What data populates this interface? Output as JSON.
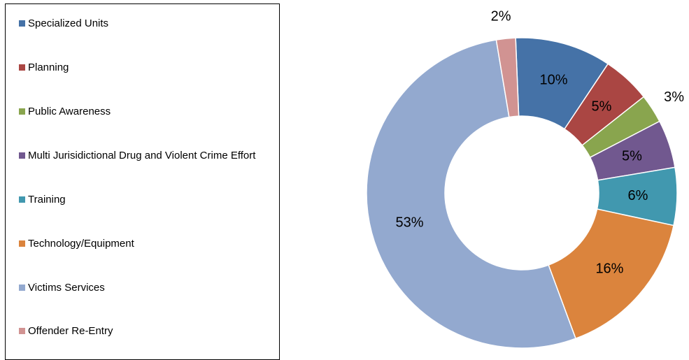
{
  "chart_data": {
    "type": "pie",
    "variant": "donut",
    "categories": [
      "Specialized Units",
      "Planning",
      "Public Awareness",
      "Multi Jurisidictional Drug and Violent Crime Effort",
      "Training",
      "Technology/Equipment",
      "Victims Services",
      "Offender Re-Entry"
    ],
    "values": [
      10,
      5,
      3,
      5,
      6,
      16,
      53,
      2
    ],
    "labels": [
      "10%",
      "5%",
      "3%",
      "5%",
      "6%",
      "16%",
      "53%",
      "2%"
    ],
    "colors": [
      "#4572a7",
      "#aa4643",
      "#89a54e",
      "#71588f",
      "#4198af",
      "#db843d",
      "#93a9cf",
      "#d19392"
    ],
    "legend_position": "left"
  }
}
